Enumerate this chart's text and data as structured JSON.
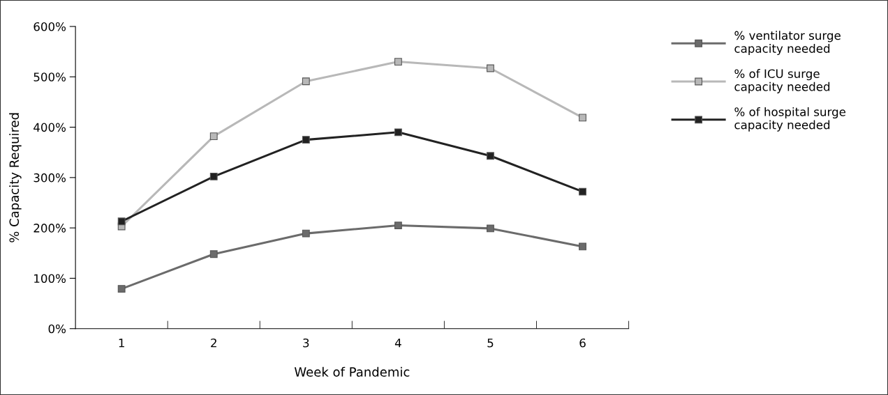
{
  "chart_data": {
    "type": "line",
    "xlabel": "Week of Pandemic",
    "ylabel": "% Capacity Required",
    "categories": [
      "1",
      "2",
      "3",
      "4",
      "5",
      "6"
    ],
    "ylim": [
      0,
      600
    ],
    "yticks": [
      {
        "value": 0,
        "label": "0%"
      },
      {
        "value": 100,
        "label": "100%"
      },
      {
        "value": 200,
        "label": "200%"
      },
      {
        "value": 300,
        "label": "300%"
      },
      {
        "value": 400,
        "label": "400%"
      },
      {
        "value": 500,
        "label": "500%"
      },
      {
        "value": 600,
        "label": "600%"
      }
    ],
    "marker": "square",
    "line_style": "solid",
    "grid": false,
    "legend": "right",
    "series": [
      {
        "name": "% ventilator surge capacity needed",
        "color": "#6b6b6b",
        "values": [
          79,
          148,
          189,
          205,
          199,
          163
        ]
      },
      {
        "name": "% of ICU surge capacity needed",
        "color": "#b8b8b8",
        "values": [
          203,
          382,
          491,
          530,
          517,
          419
        ]
      },
      {
        "name": "% of hospital surge capacity needed",
        "color": "#222222",
        "values": [
          213,
          302,
          375,
          390,
          343,
          272
        ]
      }
    ]
  }
}
